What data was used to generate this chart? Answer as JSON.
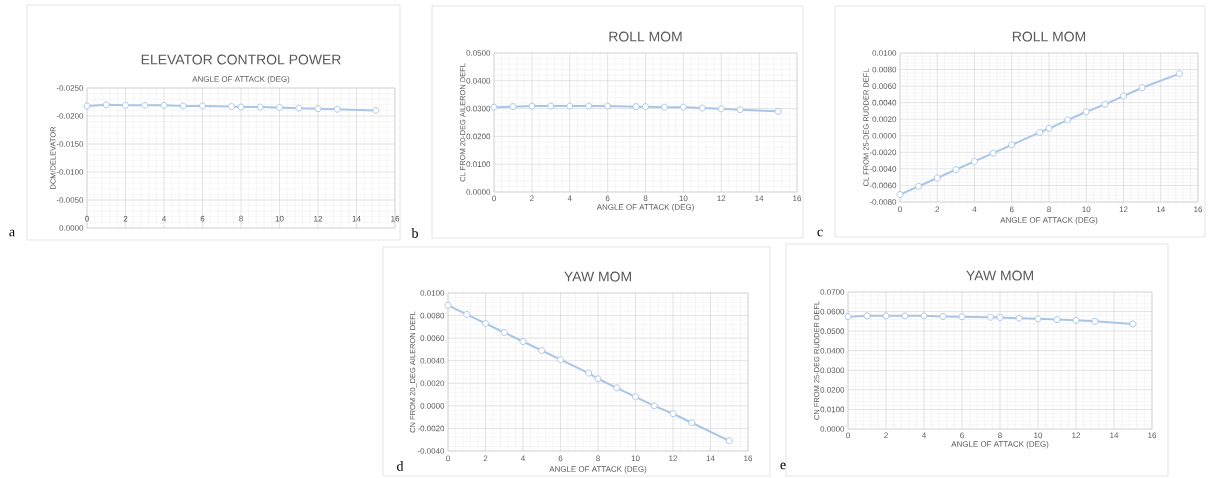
{
  "chart_data": [
    {
      "type": "line",
      "title": "ELEVATOR CONTROL POWER",
      "xlabel": "ANGLE OF ATTACK (DEG)",
      "ylabel": "DCM/DELEVATOR",
      "annotations": [
        "a"
      ],
      "x": [
        0,
        1,
        2,
        3,
        4,
        5,
        6,
        7.5,
        8,
        9,
        10,
        11,
        12,
        13,
        15
      ],
      "series": [
        {
          "color": "#a9c6e8",
          "values": [
            -0.0218,
            -0.022,
            -0.0219,
            -0.0219,
            -0.0219,
            -0.0218,
            -0.0218,
            -0.0217,
            -0.0216,
            -0.0216,
            -0.0215,
            -0.0214,
            -0.0213,
            -0.0212,
            -0.021
          ]
        }
      ],
      "xlim": [
        0,
        16
      ],
      "xticks": [
        0,
        2,
        4,
        6,
        8,
        10,
        12,
        14,
        16
      ],
      "ylim": [
        0,
        -0.025
      ],
      "yticks": [
        {
          "value": -0.025,
          "label": "-0.0250"
        },
        {
          "value": -0.02,
          "label": "-0.0200"
        },
        {
          "value": -0.015,
          "label": "-0.0150"
        },
        {
          "value": -0.01,
          "label": "-0.0100"
        },
        {
          "value": -0.005,
          "label": "-0.0050"
        },
        {
          "value": 0,
          "label": "0.0000"
        }
      ],
      "grid": true,
      "marker": "circle",
      "line_style": "solid"
    },
    {
      "type": "line",
      "title": "ROLL MOM",
      "xlabel": "ANGLE OF ATTACK (DEG)",
      "ylabel": "CL FROM 20-DEG AILERON DEFL",
      "annotations": [
        "b"
      ],
      "x": [
        0,
        1,
        2,
        3,
        4,
        5,
        6,
        7.5,
        8,
        9,
        10,
        11,
        12,
        13,
        15
      ],
      "series": [
        {
          "color": "#a9c6e8",
          "values": [
            0.0305,
            0.0307,
            0.0309,
            0.0309,
            0.0309,
            0.0309,
            0.0309,
            0.0307,
            0.0307,
            0.0305,
            0.0305,
            0.0302,
            0.0299,
            0.0296,
            0.029
          ]
        }
      ],
      "xlim": [
        0,
        16
      ],
      "xticks": [
        0,
        2,
        4,
        6,
        8,
        10,
        12,
        14,
        16
      ],
      "ylim": [
        0,
        0.05
      ],
      "yticks": [
        {
          "value": 0,
          "label": "0.0000"
        },
        {
          "value": 0.01,
          "label": "0.0100"
        },
        {
          "value": 0.02,
          "label": "0.0200"
        },
        {
          "value": 0.03,
          "label": "0.0300"
        },
        {
          "value": 0.04,
          "label": "0.0400"
        },
        {
          "value": 0.05,
          "label": "0.0500"
        }
      ],
      "grid": true,
      "marker": "circle",
      "line_style": "solid"
    },
    {
      "type": "line",
      "title": "ROLL MOM",
      "xlabel": "ANGLE OF ATTACK (DEG)",
      "ylabel": "CL FROM 25-DEG RUDDER DEFL",
      "annotations": [
        "c"
      ],
      "x": [
        0,
        1,
        2,
        3,
        4,
        5,
        6,
        7.5,
        8,
        9,
        10,
        11,
        12,
        13,
        15
      ],
      "series": [
        {
          "color": "#a9c6e8",
          "values": [
            -0.0071,
            -0.0061,
            -0.0051,
            -0.0041,
            -0.0031,
            -0.0021,
            -0.0011,
            0.0004,
            0.0009,
            0.0019,
            0.0029,
            0.0038,
            0.0048,
            0.0058,
            0.0075
          ]
        }
      ],
      "xlim": [
        0,
        16
      ],
      "xticks": [
        0,
        2,
        4,
        6,
        8,
        10,
        12,
        14,
        16
      ],
      "ylim": [
        -0.008,
        0.01
      ],
      "yticks": [
        {
          "value": -0.008,
          "label": "-0.0080"
        },
        {
          "value": -0.006,
          "label": "-0.0060"
        },
        {
          "value": -0.004,
          "label": "-0.0040"
        },
        {
          "value": -0.002,
          "label": "-0.0020"
        },
        {
          "value": 0,
          "label": "0.0000"
        },
        {
          "value": 0.002,
          "label": "0.0020"
        },
        {
          "value": 0.004,
          "label": "0.0040"
        },
        {
          "value": 0.006,
          "label": "0.0060"
        },
        {
          "value": 0.008,
          "label": "0.0080"
        },
        {
          "value": 0.01,
          "label": "0.0100"
        }
      ],
      "grid": true,
      "marker": "circle",
      "line_style": "solid"
    },
    {
      "type": "line",
      "title": "YAW MOM",
      "xlabel": "ANGLE OF ATTACK (DEG)",
      "ylabel": "CN FROM 20_DEG AILERON DEFL",
      "annotations": [
        "d"
      ],
      "x": [
        0,
        1,
        2,
        3,
        4,
        5,
        6,
        7.5,
        8,
        9,
        10,
        11,
        12,
        13,
        15
      ],
      "series": [
        {
          "color": "#a9c6e8",
          "values": [
            0.0089,
            0.0081,
            0.0073,
            0.0065,
            0.0057,
            0.0049,
            0.0041,
            0.0029,
            0.0024,
            0.0016,
            0.0008,
            0.0,
            -0.0007,
            -0.0015,
            -0.0031
          ]
        }
      ],
      "xlim": [
        0,
        16
      ],
      "xticks": [
        0,
        2,
        4,
        6,
        8,
        10,
        12,
        14,
        16
      ],
      "ylim": [
        -0.004,
        0.01
      ],
      "yticks": [
        {
          "value": -0.004,
          "label": "-0.0040"
        },
        {
          "value": -0.002,
          "label": "-0.0020"
        },
        {
          "value": 0,
          "label": "0.0000"
        },
        {
          "value": 0.002,
          "label": "0.0020"
        },
        {
          "value": 0.004,
          "label": "0.0040"
        },
        {
          "value": 0.006,
          "label": "0.0060"
        },
        {
          "value": 0.008,
          "label": "0.0080"
        },
        {
          "value": 0.01,
          "label": "0.0100"
        }
      ],
      "grid": true,
      "marker": "circle",
      "line_style": "solid"
    },
    {
      "type": "line",
      "title": "YAW MOM",
      "xlabel": "ANGLE OF ATTACK (DEG)",
      "ylabel": "CN FROM 25-DEG RUDDER DEFL",
      "annotations": [
        "e"
      ],
      "x": [
        0,
        1,
        2,
        3,
        4,
        5,
        6,
        7.5,
        8,
        9,
        10,
        11,
        12,
        13,
        15
      ],
      "series": [
        {
          "color": "#a9c6e8",
          "values": [
            0.0574,
            0.0578,
            0.0578,
            0.0578,
            0.0578,
            0.0575,
            0.0574,
            0.0571,
            0.057,
            0.0566,
            0.0563,
            0.0559,
            0.0555,
            0.055,
            0.0537
          ]
        }
      ],
      "xlim": [
        0,
        16
      ],
      "xticks": [
        0,
        2,
        4,
        6,
        8,
        10,
        12,
        14,
        16
      ],
      "ylim": [
        0,
        0.07
      ],
      "yticks": [
        {
          "value": 0,
          "label": "0.0000"
        },
        {
          "value": 0.01,
          "label": "0.0100"
        },
        {
          "value": 0.02,
          "label": "0.0200"
        },
        {
          "value": 0.03,
          "label": "0.0300"
        },
        {
          "value": 0.04,
          "label": "0.0400"
        },
        {
          "value": 0.05,
          "label": "0.0500"
        },
        {
          "value": 0.06,
          "label": "0.0600"
        },
        {
          "value": 0.07,
          "label": "0.0700"
        }
      ],
      "grid": true,
      "marker": "circle",
      "line_style": "solid"
    }
  ]
}
